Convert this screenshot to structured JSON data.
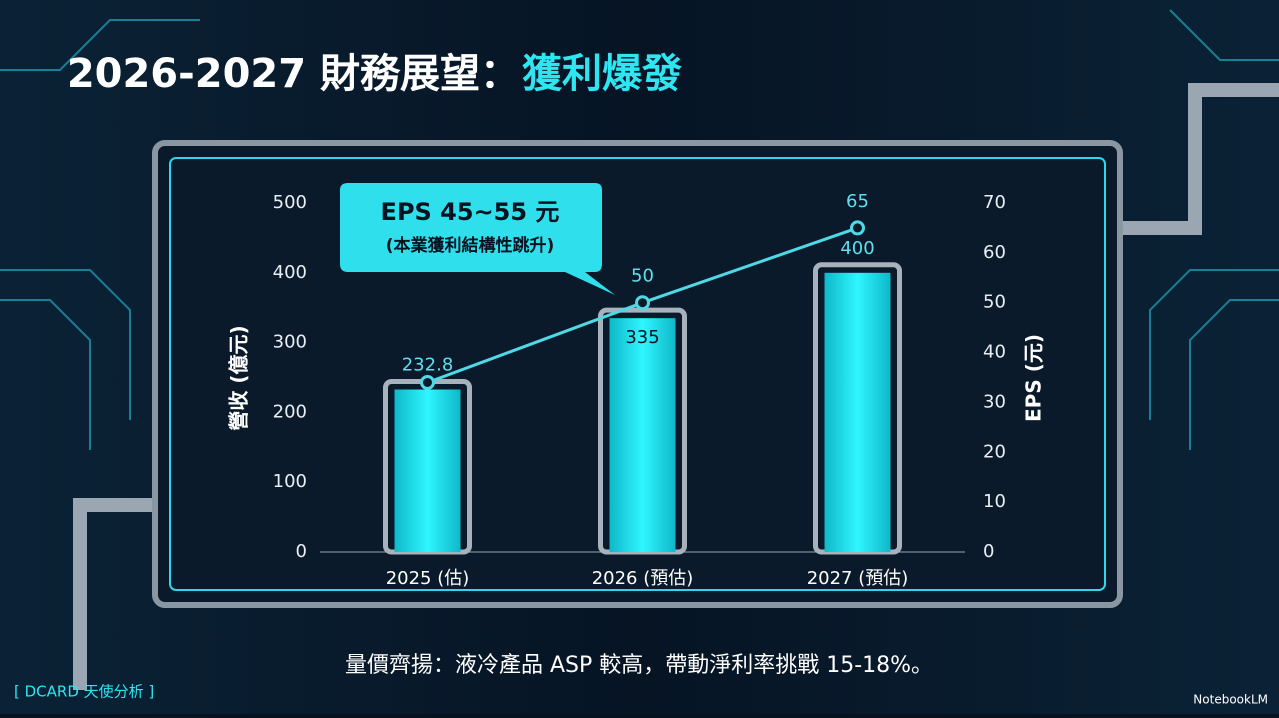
{
  "chart_data": {
    "type": "bar_line",
    "title": "2026-2027 財務展望：",
    "title_highlight": "獲利爆發",
    "categories": [
      "2025 (估)",
      "2026 (預估)",
      "2027 (預估)"
    ],
    "series": [
      {
        "type": "bar",
        "color": "#19e6f0",
        "values": [
          232.8,
          335,
          400
        ]
      },
      {
        "type": "line",
        "axis": "y2",
        "color": "#4fd8e6",
        "values": [
          34,
          50,
          65
        ],
        "value_labels": [
          null,
          "50",
          "65"
        ]
      }
    ],
    "ylabel": "營收 (億元)",
    "y2label": "EPS (元)",
    "ylim": [
      0,
      500
    ],
    "yticks": [
      0,
      100,
      200,
      300,
      400,
      500
    ],
    "y2lim": [
      0,
      70
    ],
    "y2ticks": [
      0,
      10,
      20,
      30,
      40,
      50,
      60,
      70
    ],
    "annotation": {
      "title": "EPS 45~55 元",
      "subtitle": "(本業獲利結構性跳升)"
    }
  },
  "footer": {
    "note": "量價齊揚：液冷產品 ASP 較高，帶動淨利率挑戰 15-18%。",
    "source": "[ DCARD 天使分析 ]",
    "brand": "NotebookLM"
  }
}
